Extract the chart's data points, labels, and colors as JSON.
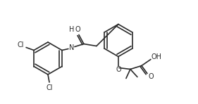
{
  "bg_color": "#ffffff",
  "line_color": "#2a2a2a",
  "line_width": 1.2,
  "font_size": 7.0,
  "figsize": [
    2.81,
    1.48
  ],
  "dpi": 100,
  "xlim": [
    0,
    281
  ],
  "ylim": [
    0,
    148
  ]
}
